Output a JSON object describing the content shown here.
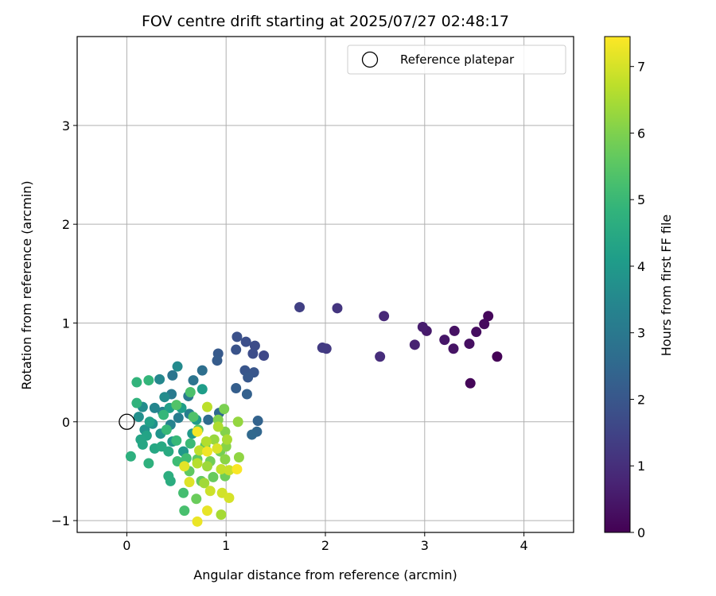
{
  "chart_data": {
    "type": "scatter",
    "title": "FOV centre drift starting at 2025/07/27 02:48:17",
    "xlabel": "Angular distance from reference (arcmin)",
    "ylabel": "Rotation from reference (arcmin)",
    "xlim": [
      -0.5,
      4.5
    ],
    "ylim": [
      -1.12,
      3.9
    ],
    "xticks": [
      0,
      1,
      2,
      3,
      4
    ],
    "yticks": [
      -1,
      0,
      1,
      2,
      3
    ],
    "xtick_labels": [
      "0",
      "1",
      "2",
      "3",
      "4"
    ],
    "ytick_labels": [
      "−1",
      "0",
      "1",
      "2",
      "3"
    ],
    "grid": true,
    "colormap": "viridis",
    "color_by": "hours",
    "legend": {
      "position": "top-right",
      "entries": [
        {
          "label": "Reference platepar",
          "marker": "open-circle"
        }
      ]
    },
    "reference_point": {
      "x": 0,
      "y": 0,
      "label": "Reference platepar"
    },
    "colorbar": {
      "label": "Hours from first FF file",
      "min": 0,
      "max": 7.45,
      "ticks": [
        0,
        1,
        2,
        3,
        4,
        5,
        6,
        7
      ]
    },
    "points": [
      {
        "x": 3.73,
        "y": 0.66,
        "h": 0.05
      },
      {
        "x": 3.46,
        "y": 0.39,
        "h": 0.1
      },
      {
        "x": 3.64,
        "y": 1.07,
        "h": 0.15
      },
      {
        "x": 3.6,
        "y": 0.99,
        "h": 0.2
      },
      {
        "x": 3.52,
        "y": 0.91,
        "h": 0.25
      },
      {
        "x": 3.45,
        "y": 0.79,
        "h": 0.3
      },
      {
        "x": 3.3,
        "y": 0.92,
        "h": 0.35
      },
      {
        "x": 3.29,
        "y": 0.74,
        "h": 0.4
      },
      {
        "x": 3.2,
        "y": 0.83,
        "h": 0.45
      },
      {
        "x": 3.02,
        "y": 0.92,
        "h": 0.5
      },
      {
        "x": 2.98,
        "y": 0.96,
        "h": 0.6
      },
      {
        "x": 2.9,
        "y": 0.78,
        "h": 0.7
      },
      {
        "x": 2.59,
        "y": 1.07,
        "h": 0.85
      },
      {
        "x": 2.55,
        "y": 0.66,
        "h": 0.95
      },
      {
        "x": 2.12,
        "y": 1.15,
        "h": 1.15
      },
      {
        "x": 2.01,
        "y": 0.74,
        "h": 1.25
      },
      {
        "x": 1.97,
        "y": 0.75,
        "h": 1.3
      },
      {
        "x": 1.74,
        "y": 1.16,
        "h": 1.4
      },
      {
        "x": 1.38,
        "y": 0.67,
        "h": 1.6
      },
      {
        "x": 1.29,
        "y": 0.77,
        "h": 1.7
      },
      {
        "x": 1.27,
        "y": 0.69,
        "h": 1.75
      },
      {
        "x": 1.2,
        "y": 0.81,
        "h": 1.8
      },
      {
        "x": 1.11,
        "y": 0.86,
        "h": 1.85
      },
      {
        "x": 1.1,
        "y": 0.73,
        "h": 1.9
      },
      {
        "x": 1.19,
        "y": 0.52,
        "h": 1.95
      },
      {
        "x": 1.28,
        "y": 0.5,
        "h": 2.0
      },
      {
        "x": 1.22,
        "y": 0.45,
        "h": 2.05
      },
      {
        "x": 0.92,
        "y": 0.69,
        "h": 2.1
      },
      {
        "x": 0.91,
        "y": 0.62,
        "h": 2.15
      },
      {
        "x": 1.1,
        "y": 0.34,
        "h": 2.2
      },
      {
        "x": 1.21,
        "y": 0.28,
        "h": 2.3
      },
      {
        "x": 1.32,
        "y": 0.01,
        "h": 2.35
      },
      {
        "x": 1.31,
        "y": -0.1,
        "h": 2.45
      },
      {
        "x": 1.26,
        "y": -0.13,
        "h": 2.5
      },
      {
        "x": 0.93,
        "y": 0.09,
        "h": 2.55
      },
      {
        "x": 0.82,
        "y": 0.02,
        "h": 2.6
      },
      {
        "x": 0.76,
        "y": 0.52,
        "h": 2.7
      },
      {
        "x": 0.67,
        "y": 0.42,
        "h": 2.85
      },
      {
        "x": 0.46,
        "y": 0.47,
        "h": 2.9
      },
      {
        "x": 0.62,
        "y": 0.26,
        "h": 3.0
      },
      {
        "x": 0.45,
        "y": 0.28,
        "h": 3.05
      },
      {
        "x": 0.52,
        "y": 0.04,
        "h": 3.15
      },
      {
        "x": 0.63,
        "y": 0.08,
        "h": 3.2
      },
      {
        "x": 0.44,
        "y": -0.03,
        "h": 3.3
      },
      {
        "x": 0.36,
        "y": 0.1,
        "h": 3.35
      },
      {
        "x": 0.28,
        "y": 0.14,
        "h": 3.4
      },
      {
        "x": 0.33,
        "y": 0.43,
        "h": 3.45
      },
      {
        "x": 0.51,
        "y": 0.56,
        "h": 3.55
      },
      {
        "x": 0.38,
        "y": 0.25,
        "h": 3.6
      },
      {
        "x": 0.16,
        "y": 0.15,
        "h": 3.65
      },
      {
        "x": 0.12,
        "y": 0.05,
        "h": 3.7
      },
      {
        "x": 0.26,
        "y": -0.02,
        "h": 3.75
      },
      {
        "x": 0.18,
        "y": -0.08,
        "h": 3.8
      },
      {
        "x": 0.34,
        "y": -0.12,
        "h": 3.85
      },
      {
        "x": 0.46,
        "y": -0.2,
        "h": 3.9
      },
      {
        "x": 0.57,
        "y": -0.3,
        "h": 3.95
      },
      {
        "x": 0.66,
        "y": -0.12,
        "h": 4.0
      },
      {
        "x": 0.7,
        "y": 0.02,
        "h": 4.05
      },
      {
        "x": 0.76,
        "y": 0.33,
        "h": 4.1
      },
      {
        "x": 0.55,
        "y": 0.14,
        "h": 4.15
      },
      {
        "x": 0.43,
        "y": 0.14,
        "h": 4.2
      },
      {
        "x": 0.23,
        "y": 0.0,
        "h": 4.25
      },
      {
        "x": 0.2,
        "y": -0.14,
        "h": 4.3
      },
      {
        "x": 0.14,
        "y": -0.18,
        "h": 4.35
      },
      {
        "x": 0.16,
        "y": -0.23,
        "h": 4.4
      },
      {
        "x": 0.28,
        "y": -0.27,
        "h": 4.45
      },
      {
        "x": 0.35,
        "y": -0.25,
        "h": 4.5
      },
      {
        "x": 0.42,
        "y": -0.3,
        "h": 4.55
      },
      {
        "x": 0.44,
        "y": -0.6,
        "h": 4.6
      },
      {
        "x": 0.42,
        "y": -0.55,
        "h": 4.65
      },
      {
        "x": 0.04,
        "y": -0.35,
        "h": 4.7
      },
      {
        "x": 0.22,
        "y": -0.42,
        "h": 4.75
      },
      {
        "x": 0.1,
        "y": 0.19,
        "h": 4.8
      },
      {
        "x": 0.1,
        "y": 0.4,
        "h": 4.85
      },
      {
        "x": 0.22,
        "y": 0.42,
        "h": 4.9
      },
      {
        "x": 0.37,
        "y": 0.07,
        "h": 4.95
      },
      {
        "x": 0.4,
        "y": -0.08,
        "h": 5.0
      },
      {
        "x": 0.5,
        "y": -0.19,
        "h": 5.0
      },
      {
        "x": 0.64,
        "y": -0.22,
        "h": 5.05
      },
      {
        "x": 0.51,
        "y": -0.4,
        "h": 5.1
      },
      {
        "x": 0.6,
        "y": -0.37,
        "h": 5.15
      },
      {
        "x": 0.57,
        "y": -0.72,
        "h": 5.2
      },
      {
        "x": 0.58,
        "y": -0.9,
        "h": 5.25
      },
      {
        "x": 0.64,
        "y": 0.3,
        "h": 5.3
      },
      {
        "x": 0.67,
        "y": 0.05,
        "h": 5.35
      },
      {
        "x": 0.5,
        "y": 0.17,
        "h": 5.4
      },
      {
        "x": 0.72,
        "y": -0.08,
        "h": 5.45
      },
      {
        "x": 0.79,
        "y": -0.24,
        "h": 5.5
      },
      {
        "x": 0.71,
        "y": -0.38,
        "h": 5.55
      },
      {
        "x": 0.63,
        "y": -0.5,
        "h": 5.6
      },
      {
        "x": 0.75,
        "y": -0.6,
        "h": 5.65
      },
      {
        "x": 0.87,
        "y": -0.56,
        "h": 5.7
      },
      {
        "x": 0.7,
        "y": -0.78,
        "h": 5.75
      },
      {
        "x": 0.99,
        "y": -0.55,
        "h": 5.8
      },
      {
        "x": 0.84,
        "y": -0.4,
        "h": 5.85
      },
      {
        "x": 0.94,
        "y": -0.3,
        "h": 5.9
      },
      {
        "x": 0.98,
        "y": 0.13,
        "h": 5.95
      },
      {
        "x": 0.92,
        "y": 0.02,
        "h": 6.0
      },
      {
        "x": 0.99,
        "y": -0.1,
        "h": 6.05
      },
      {
        "x": 1.0,
        "y": -0.25,
        "h": 6.1
      },
      {
        "x": 0.99,
        "y": -0.38,
        "h": 6.15
      },
      {
        "x": 1.13,
        "y": -0.36,
        "h": 6.2
      },
      {
        "x": 1.12,
        "y": 0.0,
        "h": 6.25
      },
      {
        "x": 0.88,
        "y": -0.18,
        "h": 6.3
      },
      {
        "x": 0.81,
        "y": -0.45,
        "h": 6.35
      },
      {
        "x": 0.78,
        "y": -0.62,
        "h": 6.4
      },
      {
        "x": 0.95,
        "y": -0.94,
        "h": 6.45
      },
      {
        "x": 1.01,
        "y": -0.18,
        "h": 6.5
      },
      {
        "x": 0.92,
        "y": -0.05,
        "h": 6.55
      },
      {
        "x": 0.8,
        "y": -0.2,
        "h": 6.6
      },
      {
        "x": 0.71,
        "y": -0.42,
        "h": 6.65
      },
      {
        "x": 0.81,
        "y": 0.15,
        "h": 6.7
      },
      {
        "x": 0.73,
        "y": -0.29,
        "h": 6.75
      },
      {
        "x": 0.95,
        "y": -0.48,
        "h": 6.8
      },
      {
        "x": 1.03,
        "y": -0.49,
        "h": 6.85
      },
      {
        "x": 0.84,
        "y": -0.7,
        "h": 6.9
      },
      {
        "x": 0.96,
        "y": -0.72,
        "h": 6.95
      },
      {
        "x": 1.03,
        "y": -0.77,
        "h": 7.0
      },
      {
        "x": 0.91,
        "y": -0.27,
        "h": 7.05
      },
      {
        "x": 0.63,
        "y": -0.61,
        "h": 7.1
      },
      {
        "x": 0.58,
        "y": -0.45,
        "h": 7.15
      },
      {
        "x": 0.81,
        "y": -0.9,
        "h": 7.2
      },
      {
        "x": 0.71,
        "y": -1.01,
        "h": 7.25
      },
      {
        "x": 0.81,
        "y": -0.3,
        "h": 7.3
      },
      {
        "x": 0.71,
        "y": -0.1,
        "h": 7.35
      },
      {
        "x": 1.11,
        "y": -0.48,
        "h": 7.4
      }
    ]
  }
}
